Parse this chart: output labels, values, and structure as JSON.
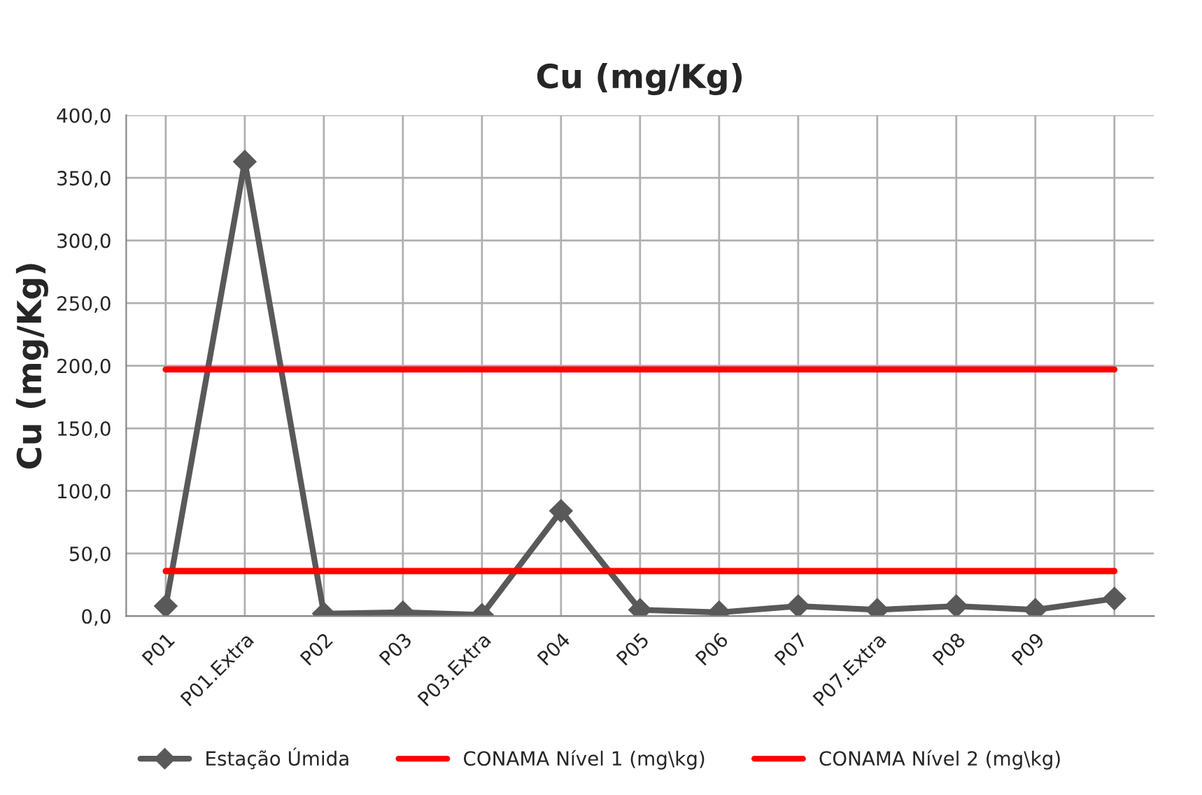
{
  "chart_data": {
    "type": "line",
    "title": "Cu (mg/Kg)",
    "ylabel": "Cu (mg/Kg)",
    "categories": [
      "P01",
      "P01.Extra",
      "P02",
      "P03",
      "P03.Extra",
      "P04",
      "P05",
      "P06",
      "P07",
      "P07.Extra",
      "P08",
      "P09",
      null
    ],
    "series": [
      {
        "name": "Estação Úmida",
        "color": "#595959",
        "marker": "diamond",
        "values": [
          8,
          363,
          2,
          3,
          1,
          84,
          5,
          3,
          8,
          5,
          8,
          5,
          14
        ]
      },
      {
        "name": "CONAMA Nível 1 (mg\\kg)",
        "color": "#ff0000",
        "marker": "none",
        "values": [
          36,
          36,
          36,
          36,
          36,
          36,
          36,
          36,
          36,
          36,
          36,
          36,
          36
        ]
      },
      {
        "name": "CONAMA Nível 2 (mg\\kg)",
        "color": "#ff0000",
        "marker": "none",
        "values": [
          197,
          197,
          197,
          197,
          197,
          197,
          197,
          197,
          197,
          197,
          197,
          197,
          197
        ]
      }
    ],
    "ylim": [
      0,
      400
    ],
    "yticks": [
      {
        "value": 0,
        "label": "0,0"
      },
      {
        "value": 50,
        "label": "50,0"
      },
      {
        "value": 100,
        "label": "100,0"
      },
      {
        "value": 150,
        "label": "150,0"
      },
      {
        "value": 200,
        "label": "200,0"
      },
      {
        "value": 250,
        "label": "250,0"
      },
      {
        "value": 300,
        "label": "300,0"
      },
      {
        "value": 350,
        "label": "350,0"
      },
      {
        "value": 400,
        "label": "400,0"
      }
    ],
    "grid": true,
    "legend": "bottom",
    "line_style": "solid"
  }
}
